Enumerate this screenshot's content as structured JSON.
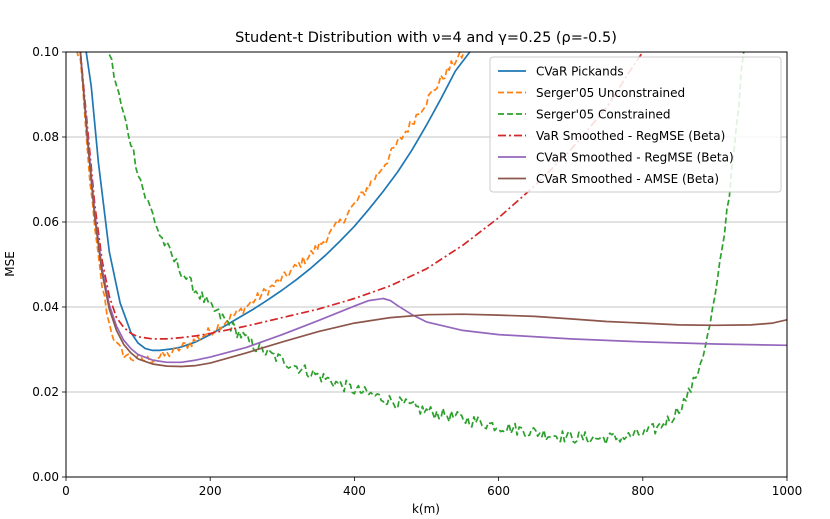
{
  "chart_data": {
    "type": "line",
    "title": "Student-t Distribution with ν=4 and γ=0.25 (ρ=-0.5)",
    "xlabel": "k(m)",
    "ylabel": "MSE",
    "xlim": [
      0,
      1000
    ],
    "ylim": [
      0,
      0.1
    ],
    "xticks": [
      0,
      200,
      400,
      600,
      800,
      1000
    ],
    "yticks": [
      0.0,
      0.02,
      0.04,
      0.06,
      0.08,
      0.1
    ],
    "xtick_labels": [
      "0",
      "200",
      "400",
      "600",
      "800",
      "1000"
    ],
    "ytick_labels": [
      "0.00",
      "0.02",
      "0.04",
      "0.06",
      "0.08",
      "0.10"
    ],
    "grid": "horizontal",
    "legend_position": "top-right",
    "series": [
      {
        "name": "CVaR Pickands",
        "color": "#1f77b4",
        "style": "solid",
        "x": [
          28,
          35,
          45,
          60,
          75,
          90,
          100,
          110,
          120,
          130,
          140,
          150,
          160,
          180,
          200,
          220,
          240,
          260,
          280,
          300,
          320,
          340,
          360,
          380,
          400,
          420,
          440,
          460,
          480,
          500,
          520,
          540,
          560
        ],
        "y": [
          0.1,
          0.092,
          0.074,
          0.053,
          0.041,
          0.034,
          0.0315,
          0.0302,
          0.0298,
          0.0298,
          0.03,
          0.0302,
          0.0306,
          0.0318,
          0.0335,
          0.0355,
          0.0375,
          0.0395,
          0.0417,
          0.044,
          0.0465,
          0.0492,
          0.0522,
          0.0555,
          0.059,
          0.063,
          0.0672,
          0.0718,
          0.077,
          0.0828,
          0.089,
          0.0955,
          0.1
        ]
      },
      {
        "name": "Serger'05 Unconstrained",
        "color": "#ff7f0e",
        "style": "dashed",
        "noise": 0.0012,
        "x": [
          15,
          20,
          30,
          40,
          50,
          60,
          70,
          80,
          90,
          100,
          110,
          120,
          130,
          140,
          150,
          160,
          180,
          200,
          220,
          240,
          260,
          280,
          300,
          320,
          340,
          360,
          380,
          400,
          420,
          440,
          460,
          480,
          500,
          520,
          540,
          555
        ],
        "y": [
          0.1,
          0.098,
          0.076,
          0.058,
          0.045,
          0.036,
          0.031,
          0.029,
          0.028,
          0.0278,
          0.0275,
          0.0278,
          0.0282,
          0.0288,
          0.0295,
          0.0305,
          0.0322,
          0.0343,
          0.0365,
          0.0388,
          0.0415,
          0.044,
          0.0466,
          0.0495,
          0.0525,
          0.056,
          0.0598,
          0.064,
          0.0685,
          0.0732,
          0.0785,
          0.0835,
          0.0885,
          0.0935,
          0.098,
          0.1
        ]
      },
      {
        "name": "Serger'05 Constrained",
        "color": "#2ca02c",
        "style": "dashed",
        "noise": 0.0015,
        "x": [
          60,
          70,
          80,
          90,
          100,
          110,
          120,
          130,
          140,
          150,
          160,
          170,
          180,
          200,
          220,
          240,
          260,
          280,
          300,
          320,
          340,
          360,
          380,
          400,
          420,
          440,
          460,
          480,
          500,
          520,
          540,
          560,
          580,
          600,
          620,
          640,
          660,
          680,
          700,
          720,
          740,
          760,
          780,
          800,
          820,
          840,
          850,
          860,
          870,
          880,
          890,
          900,
          910,
          920,
          930,
          940
        ],
        "y": [
          0.1,
          0.092,
          0.085,
          0.079,
          0.072,
          0.066,
          0.062,
          0.057,
          0.054,
          0.051,
          0.0485,
          0.046,
          0.044,
          0.04,
          0.037,
          0.0338,
          0.031,
          0.029,
          0.0275,
          0.026,
          0.0245,
          0.0232,
          0.0218,
          0.0205,
          0.0195,
          0.0185,
          0.0175,
          0.0165,
          0.0155,
          0.0148,
          0.014,
          0.0133,
          0.0127,
          0.012,
          0.0114,
          0.0108,
          0.0103,
          0.0098,
          0.0094,
          0.0092,
          0.0091,
          0.0092,
          0.0095,
          0.0102,
          0.0115,
          0.014,
          0.016,
          0.0185,
          0.022,
          0.027,
          0.033,
          0.042,
          0.053,
          0.067,
          0.083,
          0.1
        ]
      },
      {
        "name": "VaR Smoothed - RegMSE (Beta)",
        "color": "#d62728",
        "style": "dashdot",
        "x": [
          20,
          30,
          40,
          50,
          60,
          70,
          80,
          90,
          100,
          120,
          140,
          160,
          180,
          200,
          250,
          300,
          350,
          400,
          450,
          500,
          550,
          600,
          650,
          700,
          750,
          780,
          800
        ],
        "y": [
          0.1,
          0.082,
          0.064,
          0.051,
          0.0425,
          0.0375,
          0.0352,
          0.0338,
          0.033,
          0.0325,
          0.0325,
          0.0328,
          0.0332,
          0.0338,
          0.0355,
          0.0375,
          0.0395,
          0.042,
          0.045,
          0.049,
          0.0545,
          0.061,
          0.0685,
          0.077,
          0.087,
          0.095,
          0.1
        ]
      },
      {
        "name": "CVaR Smoothed - RegMSE (Beta)",
        "color": "#9467bd",
        "style": "solid",
        "x": [
          20,
          30,
          40,
          50,
          60,
          70,
          80,
          90,
          100,
          120,
          140,
          160,
          180,
          200,
          250,
          300,
          350,
          400,
          420,
          440,
          450,
          460,
          480,
          500,
          550,
          600,
          700,
          800,
          900,
          1000
        ],
        "y": [
          0.1,
          0.08,
          0.062,
          0.049,
          0.0405,
          0.0355,
          0.0322,
          0.0302,
          0.0288,
          0.0275,
          0.027,
          0.027,
          0.0275,
          0.0282,
          0.0305,
          0.0335,
          0.0368,
          0.0402,
          0.0415,
          0.042,
          0.0415,
          0.0403,
          0.0382,
          0.0365,
          0.0345,
          0.0335,
          0.0325,
          0.0318,
          0.0313,
          0.031
        ]
      },
      {
        "name": "CVaR Smoothed - AMSE (Beta)",
        "color": "#8c564b",
        "style": "solid",
        "x": [
          20,
          30,
          40,
          50,
          60,
          70,
          80,
          90,
          100,
          120,
          140,
          160,
          180,
          200,
          250,
          300,
          350,
          400,
          450,
          500,
          550,
          600,
          650,
          700,
          750,
          800,
          850,
          900,
          950,
          980,
          1000
        ],
        "y": [
          0.1,
          0.079,
          0.061,
          0.048,
          0.0395,
          0.0345,
          0.0312,
          0.0292,
          0.0278,
          0.0266,
          0.0261,
          0.026,
          0.0262,
          0.0268,
          0.0292,
          0.0318,
          0.0342,
          0.0362,
          0.0375,
          0.0382,
          0.0383,
          0.0381,
          0.0378,
          0.0372,
          0.0366,
          0.0362,
          0.0358,
          0.0357,
          0.0358,
          0.0362,
          0.037
        ]
      }
    ]
  }
}
